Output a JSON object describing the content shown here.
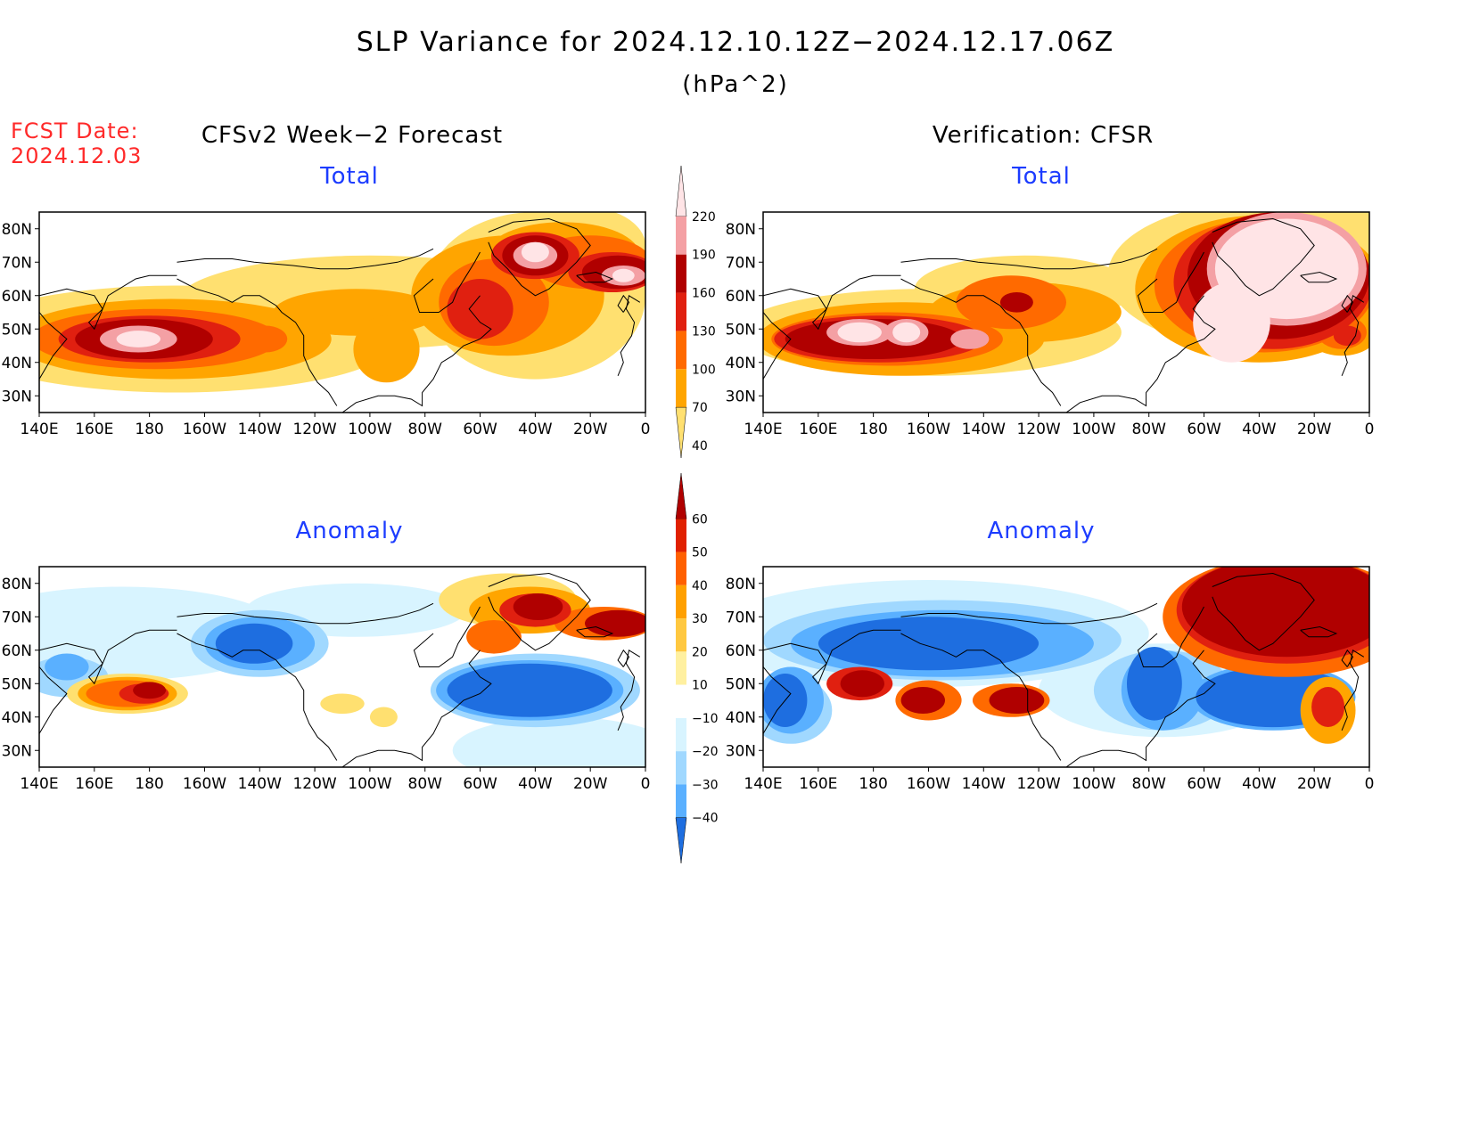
{
  "header": {
    "title": "SLP Variance for 2024.12.10.12Z−2024.12.17.06Z",
    "units": "(hPa^2)",
    "fcst_label": "FCST Date:",
    "fcst_date": "2024.12.03"
  },
  "columns": {
    "left": "CFSv2 Week−2 Forecast",
    "right": "Verification: CFSR"
  },
  "panels": {
    "total_label": "Total",
    "anomaly_label": "Anomaly"
  },
  "axes": {
    "x_ticks": [
      "140E",
      "160E",
      "180",
      "160W",
      "140W",
      "120W",
      "100W",
      "80W",
      "60W",
      "40W",
      "20W",
      "0"
    ],
    "y_ticks": [
      "80N",
      "70N",
      "60N",
      "50N",
      "40N",
      "30N"
    ]
  },
  "colorbar_total": {
    "levels": [
      "220",
      "190",
      "160",
      "130",
      "100",
      "70",
      "40"
    ],
    "colors": [
      "#ffe4e6",
      "#f4a0a4",
      "#b00000",
      "#e02010",
      "#ff6a00",
      "#ffa500",
      "#ffe070"
    ]
  },
  "colorbar_anomaly": {
    "levels": [
      "60",
      "50",
      "40",
      "30",
      "20",
      "10",
      "−10",
      "−20",
      "−30",
      "−40"
    ],
    "colors": [
      "#b00000",
      "#e02000",
      "#ff6000",
      "#ffa000",
      "#ffc840",
      "#fff0a0",
      "#ffffff",
      "#d8f4ff",
      "#a0d8ff",
      "#5ab0ff",
      "#1e6ee0"
    ]
  },
  "palette": {
    "land_line": "#000000",
    "pink": "#ffe4e6",
    "lightred": "#f4a0a4",
    "darkred": "#b00000",
    "red": "#e02010",
    "orange": "#ff6a00",
    "amber": "#ffa500",
    "yellow": "#ffe070",
    "lightblue": "#d8f4ff",
    "midblue": "#a0d8ff",
    "blue": "#5ab0ff",
    "deepblue": "#1e6ee0"
  }
}
